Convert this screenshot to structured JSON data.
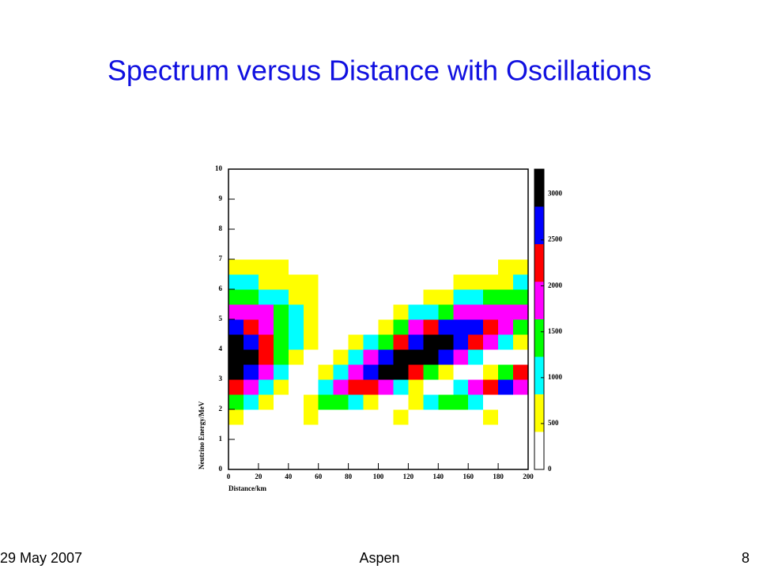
{
  "chart_data": {
    "type": "contour",
    "title": "Spectrum versus Distance with Oscillations",
    "xlabel": "Distance/km",
    "ylabel": "Neutrino Energy/MeV",
    "xlim": [
      0,
      200
    ],
    "ylim": [
      0,
      10
    ],
    "xticks": [
      0,
      20,
      40,
      60,
      80,
      100,
      120,
      140,
      160,
      180,
      200
    ],
    "yticks": [
      0,
      1,
      2,
      3,
      4,
      5,
      6,
      7,
      8,
      9,
      10
    ],
    "zlim": [
      0,
      3272
    ],
    "zticks": [
      0,
      500,
      1000,
      1500,
      2000,
      2500,
      3000
    ],
    "levels": [
      0,
      409,
      818,
      1227,
      1636,
      2045,
      2454,
      2863,
      3272
    ],
    "level_colors": [
      "#ffffff",
      "#ffff00",
      "#00ffff",
      "#00ff00",
      "#ff00ff",
      "#ff0000",
      "#0000ff",
      "#000000"
    ],
    "xbins": [
      0,
      10,
      20,
      30,
      40,
      50,
      60,
      70,
      80,
      90,
      100,
      110,
      120,
      130,
      140,
      150,
      160,
      170,
      180,
      190,
      200
    ],
    "ybins": [
      0,
      0.5,
      1,
      1.5,
      2,
      2.5,
      3,
      3.5,
      4,
      4.5,
      5,
      5.5,
      6,
      6.5,
      7,
      7.5,
      8,
      8.5,
      9,
      9.5,
      10
    ],
    "z": [
      [
        0,
        0,
        0,
        0,
        0,
        0,
        0,
        0,
        0,
        0,
        0,
        0,
        0,
        0,
        0,
        0,
        0,
        0,
        0,
        0
      ],
      [
        0,
        0,
        0,
        0,
        0,
        0,
        0,
        0,
        0,
        0,
        0,
        0,
        0,
        0,
        0,
        0,
        0,
        0,
        0,
        0
      ],
      [
        0,
        0,
        0,
        0,
        0,
        0,
        0,
        0,
        0,
        0,
        0,
        0,
        0,
        0,
        0,
        0,
        0,
        0,
        0,
        0
      ],
      [
        420,
        220,
        40,
        70,
        280,
        440,
        390,
        170,
        30,
        110,
        330,
        450,
        350,
        120,
        20,
        150,
        370,
        450,
        300,
        80
      ],
      [
        1440,
        1000,
        420,
        90,
        230,
        750,
        1290,
        1500,
        1220,
        660,
        180,
        110,
        500,
        1080,
        1470,
        1400,
        910,
        340,
        80,
        290
      ],
      [
        2430,
        1920,
        1130,
        420,
        130,
        380,
        1060,
        1860,
        2410,
        2450,
        1970,
        1180,
        460,
        130,
        340,
        1000,
        1810,
        2380,
        2460,
        2020
      ],
      [
        3040,
        2570,
        1780,
        950,
        340,
        160,
        470,
        1160,
        2020,
        2740,
        3090,
        2950,
        2370,
        1540,
        750,
        240,
        200,
        630,
        1400,
        2240
      ],
      [
        3250,
        2870,
        2200,
        1410,
        700,
        260,
        180,
        500,
        1130,
        1910,
        2640,
        3150,
        3300,
        3050,
        2470,
        1700,
        950,
        390,
        170,
        340
      ],
      [
        3060,
        2780,
        2270,
        1630,
        1010,
        480,
        190,
        190,
        470,
        980,
        1620,
        2250,
        2770,
        3060,
        3070,
        2790,
        2290,
        1650,
        1030,
        490
      ],
      [
        2580,
        2380,
        2030,
        1570,
        1080,
        630,
        300,
        140,
        170,
        390,
        770,
        1240,
        1720,
        2160,
        2470,
        2600,
        2530,
        2290,
        1890,
        1410
      ],
      [
        1990,
        1860,
        1640,
        1330,
        990,
        660,
        380,
        180,
        100,
        140,
        300,
        560,
        890,
        1220,
        1550,
        1800,
        1960,
        2000,
        1920,
        1720
      ],
      [
        1390,
        1320,
        1190,
        1000,
        790,
        570,
        370,
        210,
        110,
        70,
        110,
        210,
        380,
        570,
        790,
        1010,
        1190,
        1320,
        1390,
        1390
      ],
      [
        900,
        860,
        780,
        680,
        560,
        430,
        300,
        190,
        110,
        60,
        50,
        70,
        140,
        230,
        350,
        480,
        610,
        720,
        810,
        870
      ],
      [
        550,
        530,
        490,
        430,
        370,
        290,
        220,
        150,
        100,
        60,
        30,
        30,
        50,
        80,
        140,
        200,
        270,
        350,
        420,
        470
      ],
      [
        0,
        0,
        0,
        0,
        0,
        0,
        0,
        0,
        0,
        0,
        0,
        0,
        0,
        0,
        0,
        0,
        0,
        0,
        0,
        0
      ],
      [
        0,
        0,
        0,
        0,
        0,
        0,
        0,
        0,
        0,
        0,
        0,
        0,
        0,
        0,
        0,
        0,
        0,
        0,
        0,
        0
      ],
      [
        0,
        0,
        0,
        0,
        0,
        0,
        0,
        0,
        0,
        0,
        0,
        0,
        0,
        0,
        0,
        0,
        0,
        0,
        0,
        0
      ],
      [
        0,
        0,
        0,
        0,
        0,
        0,
        0,
        0,
        0,
        0,
        0,
        0,
        0,
        0,
        0,
        0,
        0,
        0,
        0,
        0
      ],
      [
        0,
        0,
        0,
        0,
        0,
        0,
        0,
        0,
        0,
        0,
        0,
        0,
        0,
        0,
        0,
        0,
        0,
        0,
        0,
        0
      ],
      [
        0,
        0,
        0,
        0,
        0,
        0,
        0,
        0,
        0,
        0,
        0,
        0,
        0,
        0,
        0,
        0,
        0,
        0,
        0,
        0
      ]
    ]
  },
  "footer": {
    "date": "29 May 2007",
    "event": "Aspen",
    "page": "8"
  }
}
